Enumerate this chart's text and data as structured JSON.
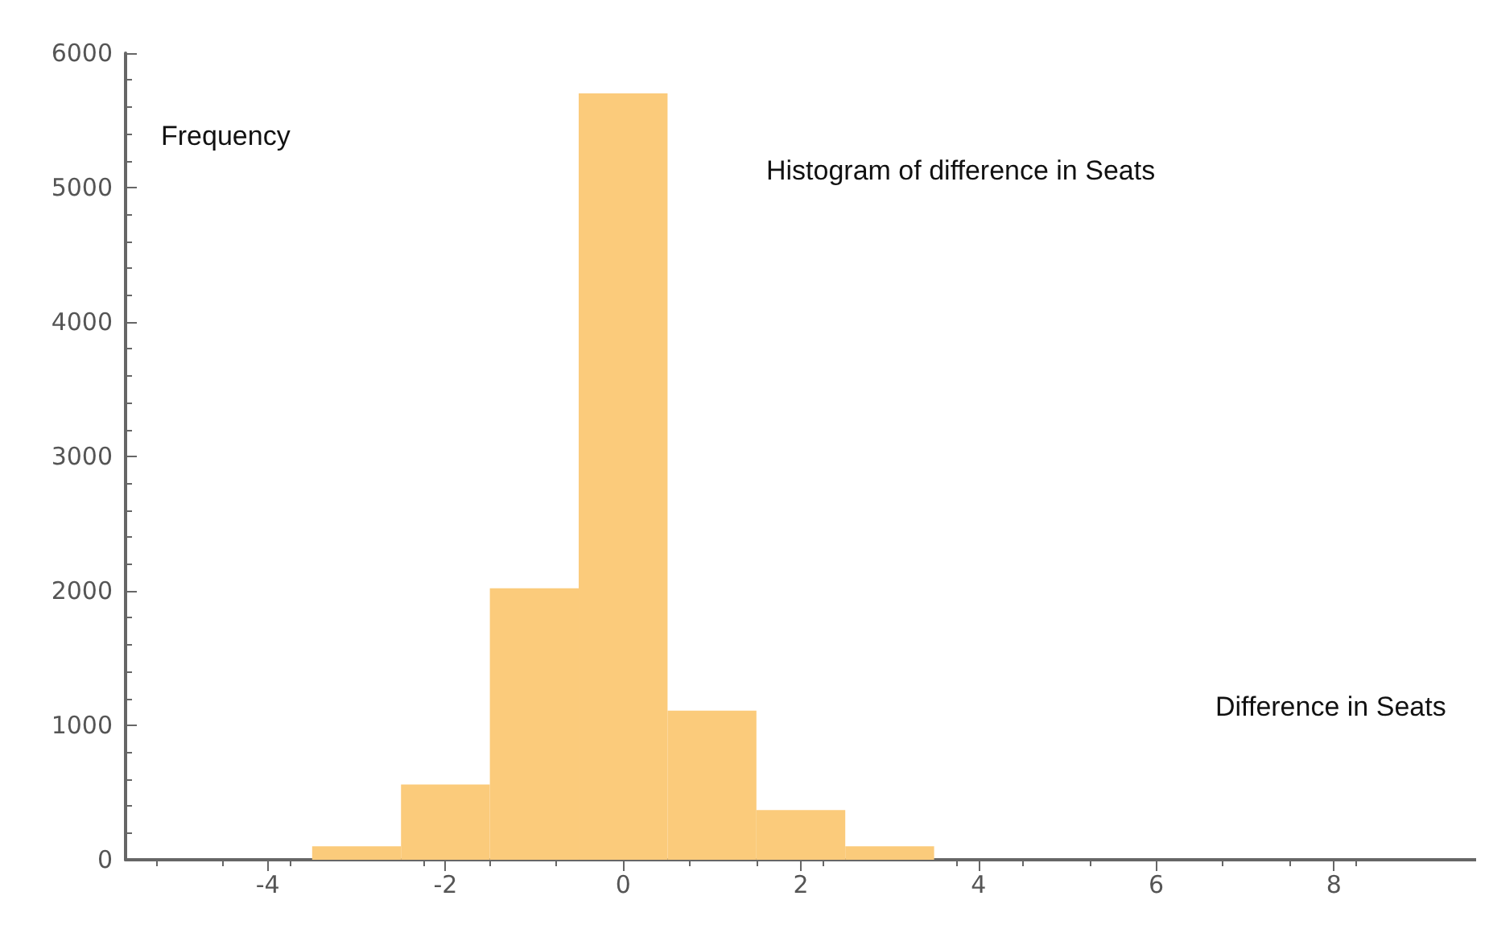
{
  "chart_data": {
    "type": "histogram",
    "title": "Histogram of difference in Seats",
    "xlabel": "Difference in Seats",
    "ylabel": "Frequency",
    "bins": [
      -3.5,
      -2.5,
      -1.5,
      -0.5,
      0.5,
      1.5,
      2.5,
      3.5
    ],
    "values": [
      100,
      560,
      2020,
      5700,
      1110,
      370,
      100
    ],
    "color": "#fbcb7b",
    "xlim": [
      -5.6,
      9.6
    ],
    "xticks": [
      -4,
      -2,
      0,
      2,
      4,
      6,
      8
    ],
    "ylim": [
      0,
      6000
    ],
    "yticks": [
      0,
      1000,
      2000,
      3000,
      4000,
      5000,
      6000
    ],
    "grid": false
  }
}
